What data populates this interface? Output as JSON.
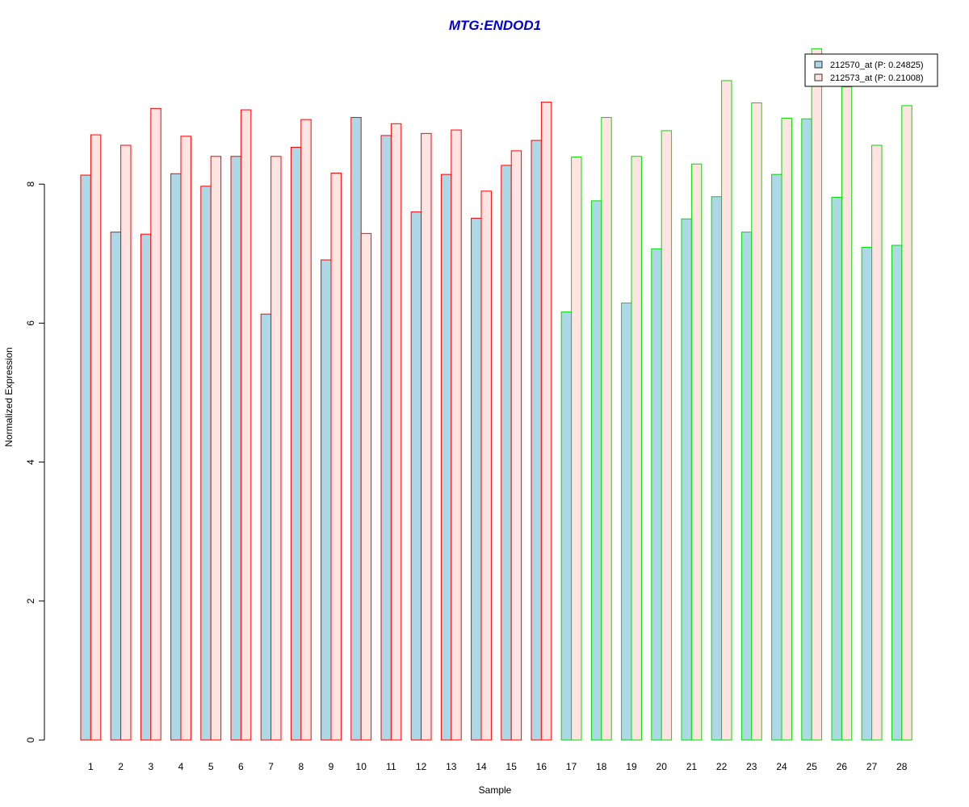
{
  "chart_data": {
    "type": "bar",
    "title": "MTG:ENDOD1",
    "xlabel": "Sample",
    "ylabel": "Normalized Expression",
    "ylim": [
      0,
      10
    ],
    "yticks": [
      0,
      2,
      4,
      6,
      8
    ],
    "grid": false,
    "legend_position": "top-right",
    "categories": [
      "1",
      "2",
      "3",
      "4",
      "5",
      "6",
      "7",
      "8",
      "9",
      "10",
      "11",
      "12",
      "13",
      "14",
      "15",
      "16",
      "17",
      "18",
      "19",
      "20",
      "21",
      "22",
      "23",
      "24",
      "25",
      "26",
      "27",
      "28"
    ],
    "series": [
      {
        "name": "212570_at (P: 0.24825)",
        "fill": "#add8e6",
        "values": [
          8.13,
          7.31,
          7.28,
          8.15,
          7.97,
          8.4,
          6.13,
          8.53,
          6.91,
          8.96,
          8.7,
          7.6,
          8.14,
          7.51,
          8.27,
          8.63,
          6.16,
          7.76,
          6.29,
          7.07,
          7.5,
          7.82,
          7.31,
          8.14,
          8.94,
          7.81,
          7.09,
          7.12
        ]
      },
      {
        "name": "212573_at (P: 0.21008)",
        "fill": "#ffe4e1",
        "values": [
          8.71,
          8.56,
          9.09,
          8.69,
          8.4,
          9.07,
          8.4,
          8.93,
          8.16,
          7.29,
          8.87,
          8.73,
          8.78,
          7.9,
          8.48,
          9.18,
          8.39,
          8.96,
          8.4,
          8.77,
          8.29,
          9.49,
          9.17,
          8.95,
          9.95,
          9.4,
          8.56,
          9.13
        ]
      }
    ],
    "groups": [
      {
        "samples": "1-16",
        "border_color": "#ff0000"
      },
      {
        "samples": "17-28",
        "border_color": "#00dd00"
      }
    ],
    "colors": {
      "title": "#0000cc",
      "axis": "#000000"
    }
  }
}
